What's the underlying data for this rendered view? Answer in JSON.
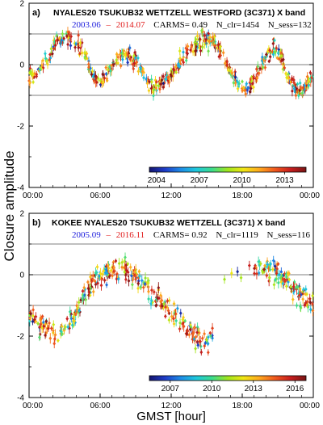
{
  "ylabel": "Closure amplitude",
  "xlabel": "GMST [hour]",
  "colorbar_colors": [
    "#14146e",
    "#1e3cc8",
    "#1e8ce6",
    "#1ec8dc",
    "#3cdc8c",
    "#a0e61e",
    "#f0e614",
    "#ffaa1e",
    "#f05a1e",
    "#c81e1e",
    "#781414"
  ],
  "chart_data": [
    {
      "type": "scatter",
      "panel_label": "a)",
      "title": "NYALES20 TSUKUB32 WETTZELL WESTFORD  (3C371) X band",
      "date_start": "2003.06",
      "date_end": "2014.07",
      "date_sep": "–",
      "carms": "CARMS= 0.49",
      "n_clr": "N_clr=1454",
      "n_sess": "N_sess=132",
      "xlim": [
        0,
        24
      ],
      "ylim": [
        -4,
        2
      ],
      "xticks": [
        0,
        6,
        12,
        18,
        24
      ],
      "xtick_labels": [
        "00:00",
        "06:00",
        "12:00",
        "18:00",
        "00:00"
      ],
      "yticks": [
        -4,
        -2,
        0,
        2
      ],
      "ytick_labels": [
        "-4",
        "-2",
        "0",
        "2"
      ],
      "reference_lines": [
        1,
        0,
        -1
      ],
      "colorbar_range": [
        2003.5,
        2014.5
      ],
      "colorbar_ticks": [
        2004,
        2007,
        2010,
        2013
      ],
      "colorbar_tick_labels": [
        "2004",
        "2007",
        "2010",
        "2013"
      ],
      "color_by": "year",
      "trend": [
        [
          0,
          -0.4
        ],
        [
          0.7,
          -0.3
        ],
        [
          1.5,
          0.2
        ],
        [
          2.3,
          0.75
        ],
        [
          3.2,
          0.9
        ],
        [
          4.0,
          0.75
        ],
        [
          4.8,
          0.2
        ],
        [
          5.5,
          -0.4
        ],
        [
          6.0,
          -0.55
        ],
        [
          6.6,
          -0.3
        ],
        [
          7.5,
          0.2
        ],
        [
          8.3,
          0.35
        ],
        [
          9.0,
          0.1
        ],
        [
          9.8,
          -0.4
        ],
        [
          10.5,
          -0.8
        ],
        [
          11.2,
          -0.65
        ],
        [
          12.0,
          -0.3
        ],
        [
          12.8,
          0.15
        ],
        [
          13.6,
          0.5
        ],
        [
          14.5,
          0.8
        ],
        [
          15.3,
          0.85
        ],
        [
          16.0,
          0.55
        ],
        [
          16.7,
          0.0
        ],
        [
          17.5,
          -0.6
        ],
        [
          18.2,
          -0.8
        ],
        [
          19.0,
          -0.5
        ],
        [
          19.8,
          0.1
        ],
        [
          20.6,
          0.55
        ],
        [
          21.2,
          0.3
        ],
        [
          21.8,
          -0.4
        ],
        [
          22.5,
          -0.75
        ],
        [
          23.2,
          -0.8
        ],
        [
          24,
          -0.35
        ]
      ],
      "scatter_sd": 0.12,
      "n_points": 520,
      "ranges": [
        [
          0,
          24
        ]
      ]
    },
    {
      "type": "scatter",
      "panel_label": "b)",
      "title": "KOKEE NYALES20 TSUKUB32 WETTZELL  (3C371) X band",
      "date_start": "2005.09",
      "date_end": "2016.11",
      "date_sep": "–",
      "carms": "CARMS= 0.92",
      "n_clr": "N_clr=1119",
      "n_sess": "N_sess=116",
      "xlim": [
        0,
        24
      ],
      "ylim": [
        -4,
        2
      ],
      "xticks": [
        0,
        6,
        12,
        18,
        24
      ],
      "xtick_labels": [
        "00:00",
        "06:00",
        "12:00",
        "18:00",
        "00:00"
      ],
      "yticks": [
        -4,
        -2,
        0,
        2
      ],
      "ytick_labels": [
        "-4",
        "-2",
        "0",
        "2"
      ],
      "reference_lines": [
        1,
        0,
        -1
      ],
      "colorbar_range": [
        2005.5,
        2016.8
      ],
      "colorbar_ticks": [
        2007,
        2010,
        2013,
        2016
      ],
      "colorbar_tick_labels": [
        "2007",
        "2010",
        "2013",
        "2016"
      ],
      "color_by": "year",
      "trend": [
        [
          0,
          -1.3
        ],
        [
          0.8,
          -1.5
        ],
        [
          1.6,
          -1.8
        ],
        [
          2.4,
          -2.0
        ],
        [
          3.2,
          -1.7
        ],
        [
          4.0,
          -1.2
        ],
        [
          4.8,
          -0.6
        ],
        [
          5.6,
          -0.2
        ],
        [
          6.4,
          0.0
        ],
        [
          7.2,
          0.15
        ],
        [
          8.0,
          0.2
        ],
        [
          8.8,
          0.0
        ],
        [
          9.6,
          -0.3
        ],
        [
          10.4,
          -0.6
        ],
        [
          11.2,
          -0.9
        ],
        [
          12.0,
          -1.2
        ],
        [
          12.8,
          -1.5
        ],
        [
          13.6,
          -1.8
        ],
        [
          14.4,
          -2.1
        ],
        [
          15.0,
          -2.2
        ],
        [
          15.5,
          -1.9
        ],
        [
          16.3,
          -0.9
        ],
        [
          17.0,
          -0.4
        ],
        [
          18.0,
          -0.1
        ],
        [
          19.0,
          0.1
        ],
        [
          19.8,
          0.2
        ],
        [
          20.6,
          0.1
        ],
        [
          21.4,
          -0.1
        ],
        [
          22.2,
          -0.4
        ],
        [
          23.0,
          -0.7
        ],
        [
          24,
          -1.0
        ]
      ],
      "scatter_sd": 0.18,
      "n_points": 420,
      "ranges": [
        [
          0,
          15.6
        ],
        [
          19.0,
          24
        ]
      ],
      "sparse_points": [
        [
          16.5,
          -0.15
        ],
        [
          17.1,
          0.05
        ],
        [
          17.6,
          0.1
        ],
        [
          17.9,
          -0.1
        ],
        [
          18.6,
          0.3
        ],
        [
          20.4,
          0.35
        ]
      ]
    }
  ]
}
